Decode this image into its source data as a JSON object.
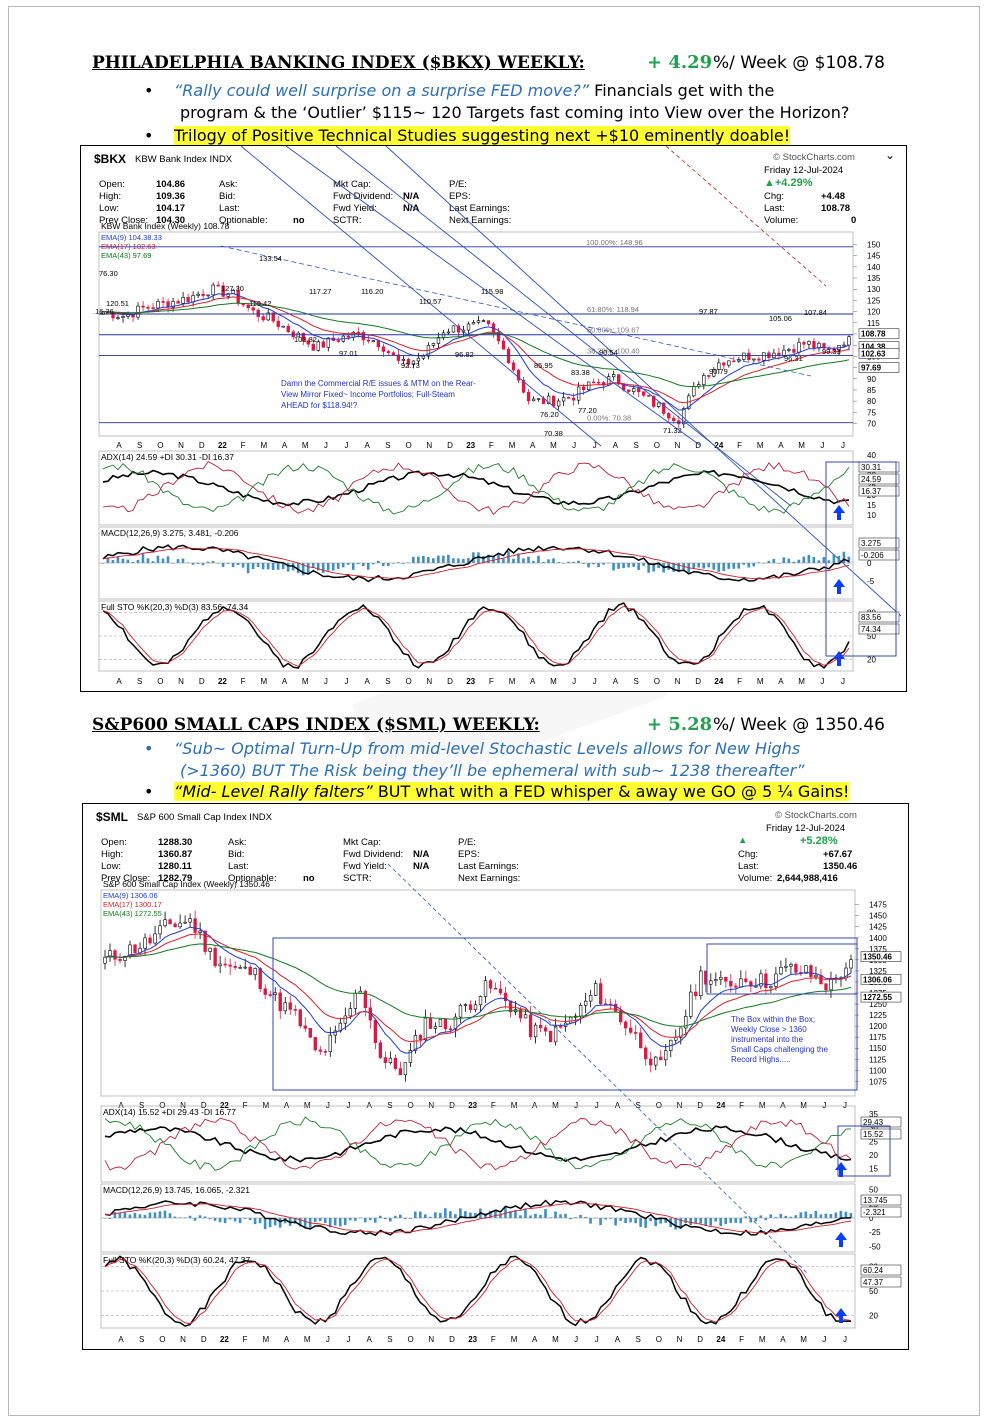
{
  "section1": {
    "title": "PHILADELPHIA BANKING INDEX ($BKX) WEEKLY:",
    "pct": "+ 4.29",
    "tail": "%/ Week @ $108.78",
    "bullet1_italic": "“Rally could well surprise on a surprise FED move?”",
    "bullet1_rest": "Financials get with the",
    "bullet1_line2": "program & the ‘Outlier’ $115~ 120 Targets fast coming into View over the Horizon?",
    "bullet2": "Trilogy of Positive Technical Studies suggesting next +$10 eminently doable!"
  },
  "chart1": {
    "symbol": "$BKX",
    "name": "KBW Bank Index INDX",
    "source": "© StockCharts.com",
    "date": "Friday  12-Jul-2024",
    "change_pct": "▲+4.29%",
    "labels": {
      "open": "Open:",
      "high": "High:",
      "low": "Low:",
      "prev": "Prev Close:",
      "ask": "Ask:",
      "bid": "Bid:",
      "last": "Last:",
      "optionable": "Optionable:",
      "mktcap": "Mkt Cap:",
      "fwddiv": "Fwd Dividend:",
      "fwdyld": "Fwd Yield:",
      "sctr": "SCTR:",
      "pe": "P/E:",
      "eps": "EPS:",
      "lastearn": "Last Earnings:",
      "nextearn": "Next Earnings:",
      "chg": "Chg:",
      "lastr": "Last:",
      "volume": "Volume:"
    },
    "values": {
      "open": "104.86",
      "high": "109.36",
      "low": "104.17",
      "prev": "104.30",
      "optionable": "no",
      "fwddiv": "N/A",
      "fwdyld": "N/A",
      "chg": "+4.48",
      "last": "108.78",
      "volume": "0"
    },
    "legend_title": "KBW Bank Index (Weekly) 108.78",
    "ema9": "EMA(9) 104.38.33",
    "ema17": "EMA(17) 102.63",
    "ema43": "EMA(43) 97.69",
    "annotation": "Damn the Commercial R/E issues & MTM on the Rear- View Mirror Fixed~ Income Portfolios; Full-Steam AHEAD for $118.94!?",
    "fib": [
      "100.00%: 148.96",
      "61.80%: 118.94",
      "50.00%: 109.67",
      "38.20%: 100.40",
      "0.00%: 70.38"
    ],
    "price_labels": [
      "133.54",
      "127.30",
      "119.42",
      "117.27",
      "116.20",
      "110.57",
      "115.98",
      "103.82",
      "97.01",
      "92.73",
      "96.82",
      "120.51",
      "76.30",
      ".16.26",
      "85.95",
      "83.38",
      "90.54",
      "77.20",
      "76.20",
      "70.38",
      "71.32",
      "97.87",
      "105.06",
      "107.84",
      "90.79",
      "96.31",
      "99.33"
    ],
    "yticks": [
      "150",
      "145",
      "140",
      "135",
      "130",
      "125",
      "120",
      "115",
      "110",
      "105",
      "100",
      "95",
      "90",
      "85",
      "80",
      "75",
      "70"
    ],
    "right_tags": [
      "108.78",
      "104.38",
      "102.63",
      "97.69"
    ],
    "x_labels": [
      "A",
      "S",
      "O",
      "N",
      "D",
      "22",
      "F",
      "M",
      "A",
      "M",
      "J",
      "J",
      "A",
      "S",
      "O",
      "N",
      "D",
      "23",
      "F",
      "M",
      "A",
      "M",
      "J",
      "J",
      "A",
      "S",
      "O",
      "N",
      "D",
      "24",
      "F",
      "M",
      "A",
      "M",
      "J",
      "J"
    ],
    "adx_title": "ADX(14) 24.59 +DI 30.31 -DI 16.37",
    "adx_ticks": [
      "40",
      "35",
      "30",
      "25",
      "20",
      "15",
      "10"
    ],
    "adx_tags": [
      "30.31",
      "24.59",
      "16.37"
    ],
    "macd_title": "MACD(12,26,9) 3.275, 3.481, -0.206",
    "macd_ticks": [
      "5",
      "0",
      "-5"
    ],
    "macd_tags": [
      "3.275",
      "-0.206"
    ],
    "sto_title": "Full STO %K(20,3) %D(3) 83.56, 74.34",
    "sto_ticks": [
      "80",
      "50",
      "20"
    ],
    "sto_tags": [
      "83.56",
      "74.34"
    ]
  },
  "section2": {
    "title": "S&P600 SMALL CAPS INDEX ($SML) WEEKLY:",
    "pct": "+ 5.28",
    "tail": "%/ Week @ 1350.46",
    "bullet1_line1": "“Sub~ Optimal Turn-Up from mid-level Stochastic Levels allows for New Highs",
    "bullet1_line2": "(>1360) BUT The Risk being they’ll be ephemeral with sub~ 1238 thereafter”",
    "bullet2_italic": "“Mid- Level Rally falters”",
    "bullet2_rest": "BUT what with a FED whisper & away we GO @ 5 ¼ Gains!"
  },
  "chart2": {
    "symbol": "$SML",
    "name": "S&P 600 Small Cap Index INDX",
    "source": "© StockCharts.com",
    "date": "Friday  12-Jul-2024",
    "change_pct": "+5.28%",
    "values": {
      "open": "1288.30",
      "high": "1360.87",
      "low": "1280.11",
      "prev": "1282.79",
      "optionable": "no",
      "fwddiv": "N/A",
      "fwdyld": "N/A",
      "chg": "+67.67",
      "last": "1350.46",
      "volume": "2,644,988,416"
    },
    "legend_title": "S&P 600 Small Cap Index (Weekly) 1350.46",
    "ema9": "EMA(9) 1306.06",
    "ema17": "EMA(17) 1300.17",
    "ema43": "EMA(43) 1272.55",
    "annotation": "The Box within the Box; Weekly Close > 1360 instrumental into the Small Caps challenging the Record Highs.....",
    "yticks": [
      "1475",
      "1450",
      "1425",
      "1400",
      "1375",
      "1350",
      "1325",
      "1300",
      "1275",
      "1250",
      "1225",
      "1200",
      "1175",
      "1150",
      "1125",
      "1100",
      "1075"
    ],
    "right_tags": [
      "1350.46",
      "1306.06",
      "1272.55"
    ],
    "adx_title": "ADX(14) 15.52 +DI 29.43 -DI 16.77",
    "adx_ticks": [
      "35",
      "30",
      "25",
      "20",
      "15"
    ],
    "adx_tags": [
      "29.43",
      "15.52"
    ],
    "macd_title": "MACD(12,26,9) 13.745, 16.065, -2.321",
    "macd_ticks": [
      "50",
      "25",
      "0",
      "-25",
      "-50"
    ],
    "macd_tags": [
      "13.745",
      "-2.321"
    ],
    "sto_title": "Full STO %K(20,3) %D(3) 60.24, 47.37",
    "sto_ticks": [
      "80",
      "50",
      "20"
    ],
    "sto_tags": [
      "60.24",
      "47.37"
    ]
  },
  "chart_data": [
    {
      "type": "line",
      "title": "KBW Bank Index (Weekly) 108.78",
      "x": [
        "A",
        "S",
        "O",
        "N",
        "D",
        "22",
        "F",
        "M",
        "A",
        "M",
        "J",
        "J",
        "A",
        "S",
        "O",
        "N",
        "D",
        "23",
        "F",
        "M",
        "A",
        "M",
        "J",
        "J",
        "A",
        "S",
        "O",
        "N",
        "D",
        "24",
        "F",
        "M",
        "A",
        "M",
        "J",
        "J"
      ],
      "series": [
        {
          "name": "KBW Bank Index (Weekly)",
          "values": [
            120,
            118,
            122,
            124,
            126,
            130,
            128,
            120,
            116,
            110,
            104,
            108,
            110,
            106,
            96,
            100,
            112,
            113,
            114,
            100,
            80,
            80,
            82,
            88,
            90,
            84,
            78,
            72,
            90,
            98,
            100,
            101,
            103,
            106,
            102,
            108.78
          ]
        }
      ],
      "ylim": [
        68,
        152
      ]
    },
    {
      "type": "line",
      "title": "S&P 600 Small Cap Index (Weekly) 1350.46",
      "x": [
        "A",
        "S",
        "O",
        "N",
        "D",
        "22",
        "F",
        "M",
        "A",
        "M",
        "J",
        "J",
        "A",
        "S",
        "O",
        "N",
        "D",
        "23",
        "F",
        "M",
        "A",
        "M",
        "J",
        "J",
        "A",
        "S",
        "O",
        "N",
        "D",
        "24",
        "F",
        "M",
        "A",
        "M",
        "J",
        "J"
      ],
      "series": [
        {
          "name": "S&P 600 Small Cap Index (Weekly)",
          "values": [
            1350,
            1370,
            1390,
            1430,
            1440,
            1360,
            1330,
            1320,
            1260,
            1220,
            1130,
            1190,
            1290,
            1120,
            1100,
            1210,
            1200,
            1250,
            1290,
            1250,
            1190,
            1180,
            1220,
            1280,
            1230,
            1170,
            1100,
            1200,
            1320,
            1290,
            1310,
            1300,
            1330,
            1320,
            1290,
            1350.46
          ]
        }
      ],
      "ylim": [
        1060,
        1490
      ]
    }
  ],
  "colors": {
    "green": "#1fa14a",
    "blue_text": "#2b6fb6",
    "highlight": "#ffff33",
    "up": "#000000",
    "down": "#d81b45",
    "ema9": "#1f3bd6",
    "ema17": "#e0202a",
    "ema43": "#137a1f",
    "arrow": "#0a3cff"
  }
}
